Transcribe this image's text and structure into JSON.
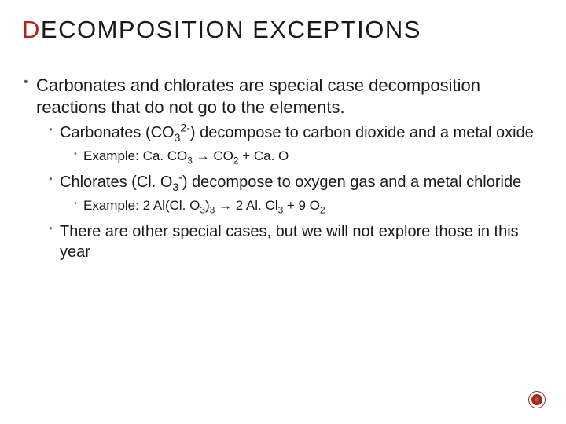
{
  "colors": {
    "title_black": "#1a1a1a",
    "title_red": "#b02418",
    "body_text": "#1a1a1a",
    "bullet_gray": "#5a5a5a",
    "divider": "#bfbfbf",
    "icon_dark": "#9c2b20",
    "icon_light": "#c64a3c",
    "background": "#ffffff"
  },
  "typography": {
    "title_fontsize": 31,
    "title_letter_spacing": 1.5,
    "lvl1_fontsize": 22,
    "lvl2_fontsize": 20,
    "lvl3_fontsize": 17,
    "font_family": "Arial"
  },
  "title": {
    "first_char": "D",
    "rest": "ECOMPOSITION EXCEPTIONS"
  },
  "bullets": {
    "lvl1_0": "Carbonates and chlorates are special case decomposition reactions that do not go to the elements.",
    "lvl2_0_pre": "Carbonates (CO",
    "lvl2_0_sub1": "3",
    "lvl2_0_sup1": "2-",
    "lvl2_0_post": ") decompose to carbon dioxide and a metal oxide",
    "lvl3_0_pre": "Example: Ca. CO",
    "lvl3_0_sub1": "3",
    "lvl3_0_mid1": " → CO",
    "lvl3_0_sub2": "2",
    "lvl3_0_post": " + Ca. O",
    "lvl2_1_pre": "Chlorates (Cl. O",
    "lvl2_1_sub1": "3",
    "lvl2_1_sup1": "-",
    "lvl2_1_post": ") decompose to oxygen gas and a metal chloride",
    "lvl3_1_pre": "Example: 2 Al(Cl. O",
    "lvl3_1_sub1": "3",
    "lvl3_1_mid1": ")",
    "lvl3_1_sub2": "3",
    "lvl3_1_mid2": " → 2 Al. Cl",
    "lvl3_1_sub3": "3",
    "lvl3_1_mid3": " + 9 O",
    "lvl3_1_sub4": "2",
    "lvl2_2": "There are other special cases, but we will not explore those in this year"
  }
}
